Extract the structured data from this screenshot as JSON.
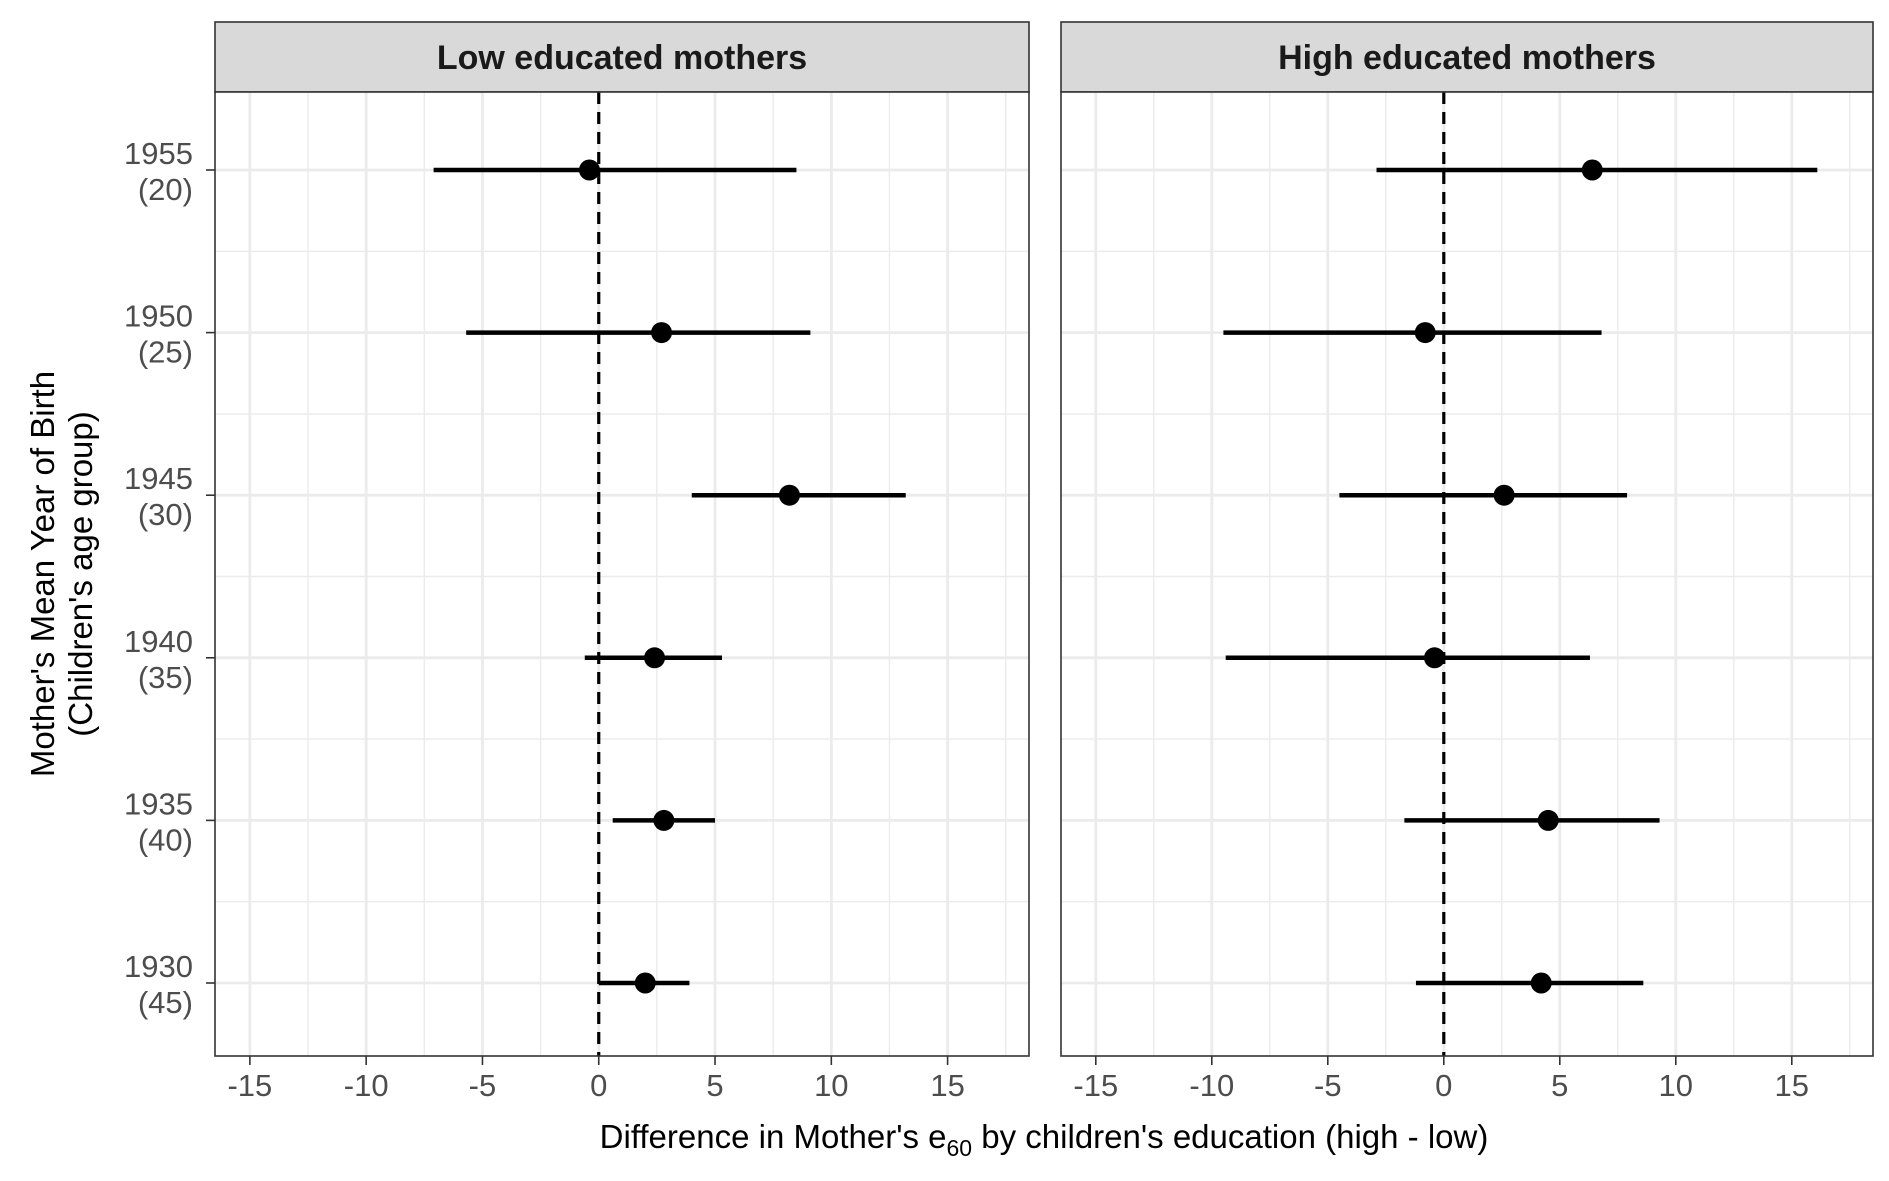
{
  "chart_data": {
    "type": "forest",
    "xlabel": {
      "prefix": "Difference in Mother's e",
      "subscript": "60",
      "suffix": " by children's education (high - low)"
    },
    "ylabel": [
      "Mother's Mean Year of Birth",
      "(Children's age group)"
    ],
    "xlim": [
      -16.5,
      18.5
    ],
    "x_ticks": [
      -15,
      -10,
      -5,
      0,
      5,
      10,
      15
    ],
    "x_tick_labels": [
      "-15",
      "-10",
      "-5",
      "0",
      "5",
      "10",
      "15"
    ],
    "reference_line": 0,
    "categories": [
      {
        "year": "1955",
        "age": "(20)"
      },
      {
        "year": "1950",
        "age": "(25)"
      },
      {
        "year": "1945",
        "age": "(30)"
      },
      {
        "year": "1940",
        "age": "(35)"
      },
      {
        "year": "1935",
        "age": "(40)"
      },
      {
        "year": "1930",
        "age": "(45)"
      }
    ],
    "panels": [
      {
        "title": "Low educated mothers",
        "estimates": [
          {
            "est": -0.4,
            "lo": -7.1,
            "hi": 8.5
          },
          {
            "est": 2.7,
            "lo": -5.7,
            "hi": 9.1
          },
          {
            "est": 8.2,
            "lo": 4.0,
            "hi": 13.2
          },
          {
            "est": 2.4,
            "lo": -0.6,
            "hi": 5.3
          },
          {
            "est": 2.8,
            "lo": 0.6,
            "hi": 5.0
          },
          {
            "est": 2.0,
            "lo": 0.0,
            "hi": 3.9
          }
        ]
      },
      {
        "title": "High educated mothers",
        "estimates": [
          {
            "est": 6.4,
            "lo": -2.9,
            "hi": 16.1
          },
          {
            "est": -0.8,
            "lo": -9.5,
            "hi": 6.8
          },
          {
            "est": 2.6,
            "lo": -4.5,
            "hi": 7.9
          },
          {
            "est": -0.4,
            "lo": -9.4,
            "hi": 6.3
          },
          {
            "est": 4.5,
            "lo": -1.7,
            "hi": 9.3
          },
          {
            "est": 4.2,
            "lo": -1.2,
            "hi": 8.6
          }
        ]
      }
    ],
    "grid": true,
    "colors": {
      "strip_fill": "#d9d9d9",
      "grid": "#ebebeb",
      "mark": "#000000",
      "border": "#333333"
    }
  }
}
